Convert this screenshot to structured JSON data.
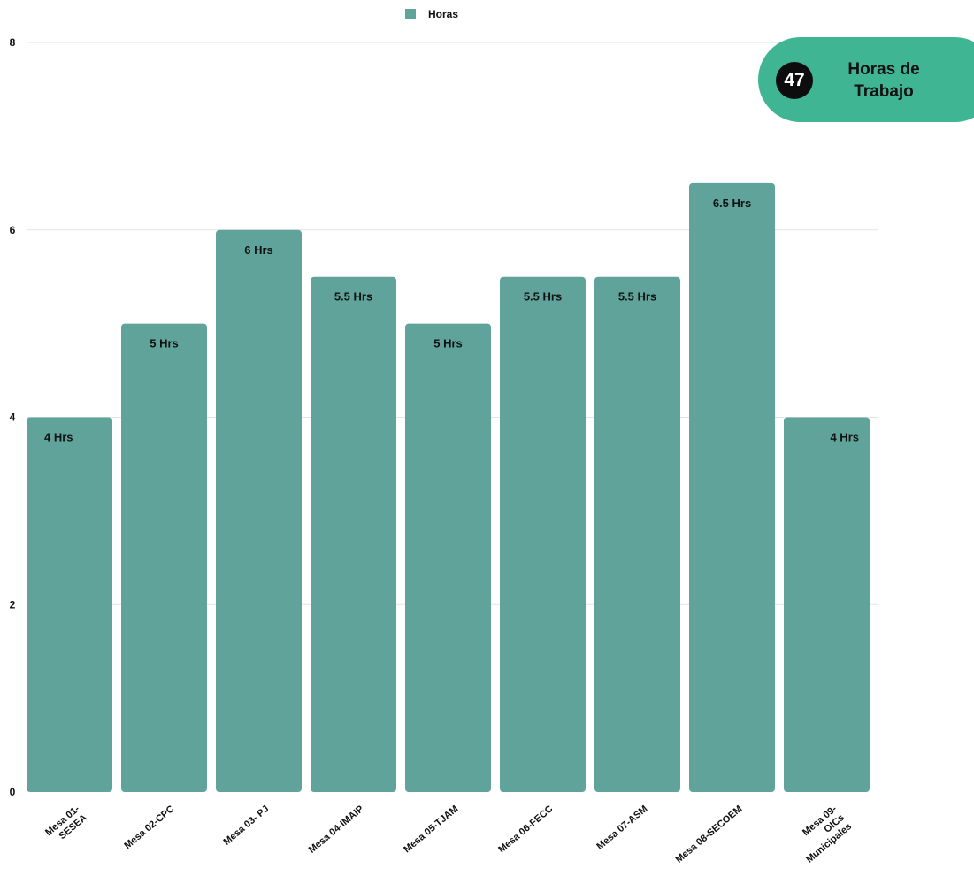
{
  "chart_data": {
    "type": "bar",
    "categories": [
      [
        "Mesa 01-",
        "SESEA"
      ],
      [
        "Mesa 02-CPC"
      ],
      [
        "Mesa 03- PJ"
      ],
      [
        "Mesa 04-IMAIP"
      ],
      [
        "Mesa 05-TJAM"
      ],
      [
        "Mesa 06-FECC"
      ],
      [
        "Mesa 07-ASM"
      ],
      [
        "Mesa 08-SECOEM"
      ],
      [
        "Mesa 09-",
        "OICs",
        "Municipales"
      ]
    ],
    "series": [
      {
        "name": "Horas",
        "values": [
          4,
          5,
          6,
          5.5,
          5,
          5.5,
          5.5,
          6.5,
          4
        ],
        "data_labels": [
          "4 Hrs",
          "5 Hrs",
          "6 Hrs",
          "5.5 Hrs",
          "5 Hrs",
          "5.5 Hrs",
          "5.5 Hrs",
          "6.5 Hrs",
          "4 Hrs"
        ],
        "color": "#5fa39a"
      }
    ],
    "title": "",
    "xlabel": "",
    "ylabel": "",
    "ylim": [
      0,
      8
    ],
    "yticks": [
      0,
      2,
      4,
      6,
      8
    ],
    "grid": true,
    "legend_position": "top-center"
  },
  "badge": {
    "number": "47",
    "line1": "Horas de",
    "line2": "Trabajo",
    "color": "#3fb594"
  }
}
